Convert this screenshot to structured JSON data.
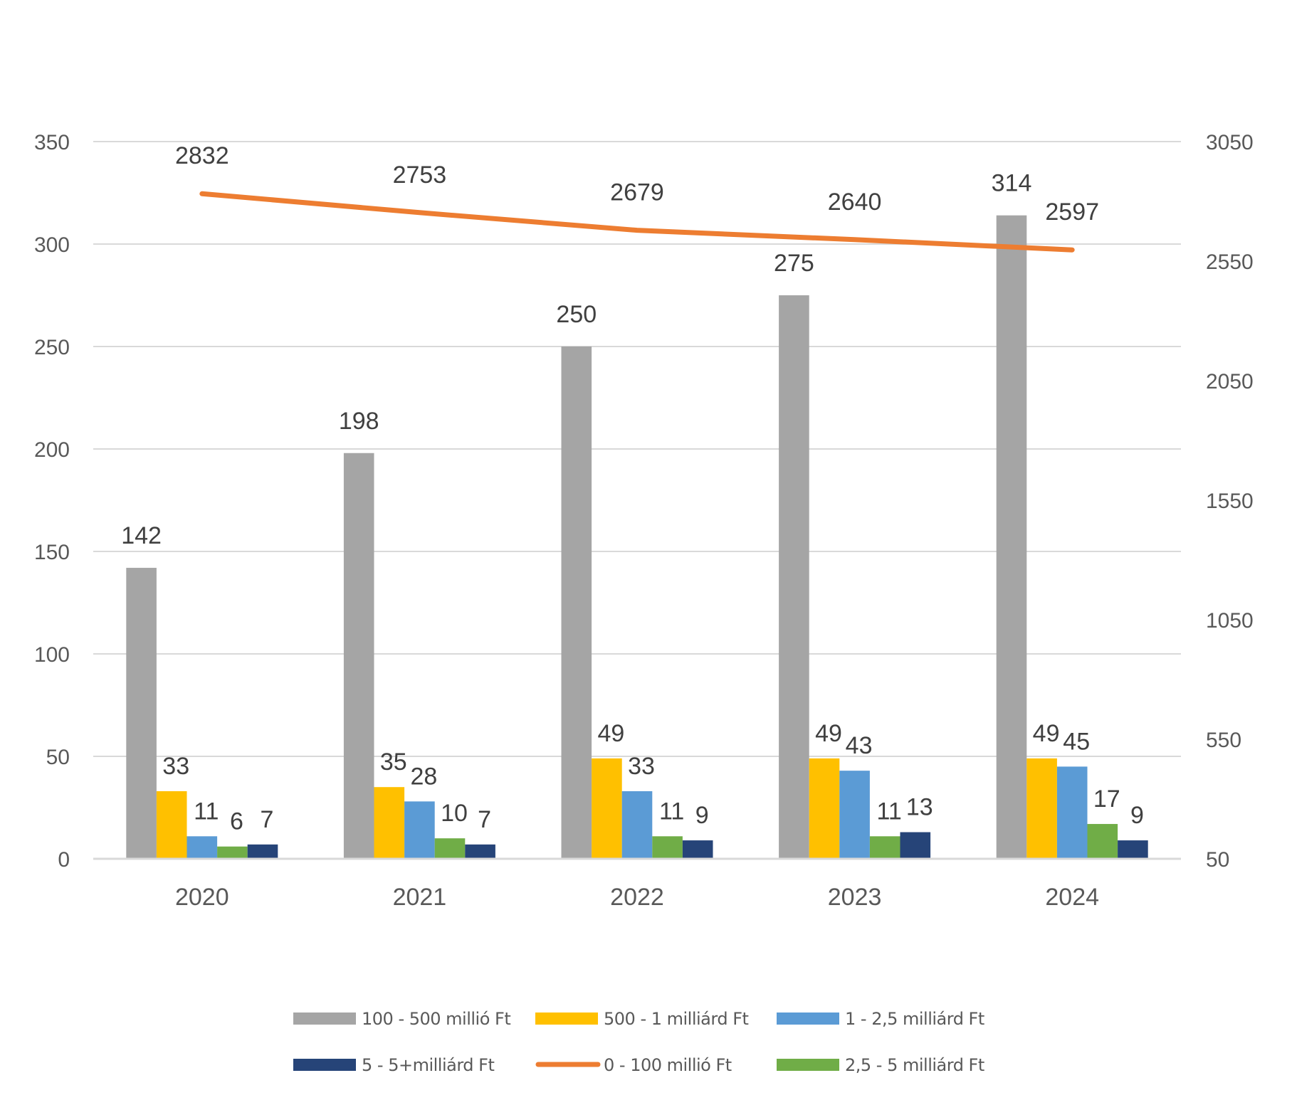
{
  "chart_data": {
    "type": "bar",
    "title": "",
    "xlabel": "",
    "ylabel": "",
    "categories": [
      "2020",
      "2021",
      "2022",
      "2023",
      "2024"
    ],
    "ylim": [
      0,
      350
    ],
    "yticks": [
      "0",
      "50",
      "100",
      "150",
      "200",
      "250",
      "300",
      "350"
    ],
    "y2lim": [
      50,
      3050
    ],
    "y2ticks": [
      "50",
      "550",
      "1050",
      "1550",
      "2050",
      "2550",
      "3050"
    ],
    "grid": true,
    "legend_position": "bottom",
    "series": [
      {
        "name": "100 - 500 millió Ft",
        "type": "bar",
        "axis": "left",
        "color": "#a5a5a5",
        "values": [
          142,
          198,
          250,
          275,
          314
        ]
      },
      {
        "name": "500 - 1 milliárd Ft",
        "type": "bar",
        "axis": "left",
        "color": "#ffc000",
        "values": [
          33,
          35,
          49,
          49,
          49
        ]
      },
      {
        "name": "1 - 2,5 milliárd Ft",
        "type": "bar",
        "axis": "left",
        "color": "#5b9bd5",
        "values": [
          11,
          28,
          33,
          43,
          45
        ]
      },
      {
        "name": "2,5 - 5 milliárd Ft",
        "type": "bar",
        "axis": "left",
        "color": "#70ad47",
        "values": [
          6,
          10,
          11,
          11,
          17
        ]
      },
      {
        "name": "5 - 5+milliárd Ft",
        "type": "bar",
        "axis": "left",
        "color": "#264478",
        "values": [
          7,
          7,
          9,
          13,
          9
        ]
      },
      {
        "name": "0 - 100 millió Ft",
        "type": "line",
        "axis": "right",
        "color": "#ed7d31",
        "values": [
          2832,
          2753,
          2679,
          2640,
          2597
        ]
      }
    ],
    "legend_order": [
      0,
      1,
      2,
      4,
      5,
      3
    ]
  }
}
